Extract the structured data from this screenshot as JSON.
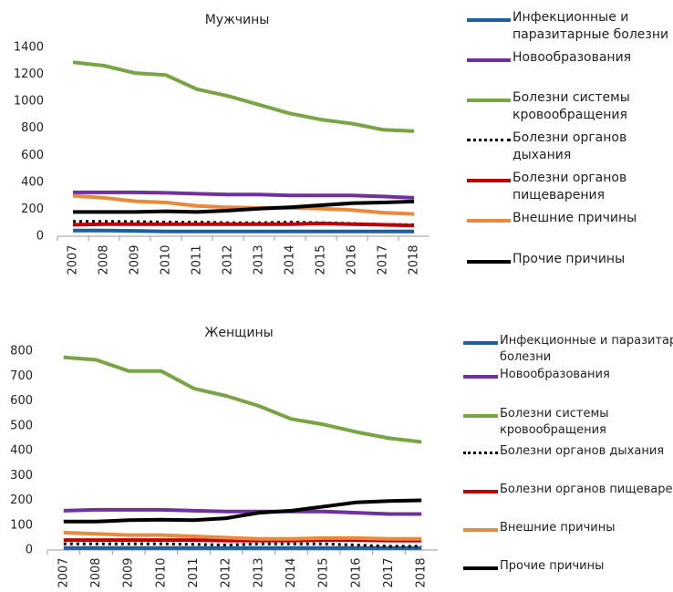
{
  "chart_data": [
    {
      "type": "line",
      "title": "Мужчины",
      "categories": [
        "2007",
        "2008",
        "2009",
        "2010",
        "2011",
        "2012",
        "2013",
        "2014",
        "2015",
        "2016",
        "2017",
        "2018"
      ],
      "ylim": [
        0,
        1400
      ],
      "yticks": [
        0,
        200,
        400,
        600,
        800,
        1000,
        1200,
        1400
      ],
      "series": [
        {
          "name": "Инфекционные и паразитарные болезни",
          "color": "#1f5fa0",
          "values": [
            42,
            42,
            40,
            35,
            35,
            35,
            35,
            35,
            35,
            35,
            35,
            35
          ]
        },
        {
          "name": "Новообразования",
          "color": "#7030a0",
          "values": [
            325,
            325,
            325,
            322,
            315,
            310,
            310,
            302,
            302,
            302,
            295,
            285
          ]
        },
        {
          "name": "Болезни системы кровообращения",
          "color": "#77a544",
          "values": [
            1290,
            1265,
            1210,
            1195,
            1090,
            1040,
            975,
            910,
            865,
            835,
            790,
            780
          ]
        },
        {
          "name": "Болезни органов дыхания",
          "color": "#000000",
          "style": "dotted",
          "values": [
            110,
            110,
            108,
            105,
            105,
            100,
            100,
            105,
            100,
            95,
            88,
            85
          ]
        },
        {
          "name": "Болезни органов пищеварения",
          "color": "#c00000",
          "values": [
            85,
            90,
            90,
            90,
            90,
            90,
            90,
            90,
            95,
            90,
            85,
            80
          ]
        },
        {
          "name": "Внешние причины",
          "color": "#e8893b",
          "values": [
            300,
            285,
            260,
            250,
            225,
            215,
            210,
            210,
            205,
            195,
            175,
            165
          ]
        },
        {
          "name": "Прочие причины",
          "color": "#000000",
          "values": [
            180,
            180,
            180,
            185,
            180,
            190,
            205,
            215,
            230,
            245,
            250,
            258
          ]
        }
      ]
    },
    {
      "type": "line",
      "title": "Женщины",
      "categories": [
        "2007",
        "2008",
        "2009",
        "2010",
        "2011",
        "2012",
        "2013",
        "2014",
        "2015",
        "2016",
        "2017",
        "2018"
      ],
      "ylim": [
        0,
        800
      ],
      "yticks": [
        0,
        100,
        200,
        300,
        400,
        500,
        600,
        700,
        800
      ],
      "series": [
        {
          "name": "Инфекционные и паразитарные болезни",
          "color": "#1f5fa0",
          "values": [
            8,
            8,
            8,
            8,
            8,
            8,
            8,
            8,
            8,
            8,
            8,
            8
          ]
        },
        {
          "name": "Новообразования",
          "color": "#7030a0",
          "values": [
            158,
            162,
            162,
            162,
            158,
            155,
            155,
            155,
            155,
            150,
            145,
            145
          ]
        },
        {
          "name": "Болезни системы кровообращения",
          "color": "#77a544",
          "values": [
            775,
            765,
            720,
            720,
            650,
            620,
            580,
            527,
            505,
            475,
            450,
            435
          ]
        },
        {
          "name": "Болезни органов дыхания",
          "color": "#000000",
          "style": "dotted",
          "values": [
            25,
            25,
            25,
            25,
            23,
            20,
            25,
            25,
            25,
            20,
            15,
            15
          ]
        },
        {
          "name": "Болезни органов пищеварения",
          "color": "#c00000",
          "values": [
            40,
            40,
            40,
            40,
            40,
            38,
            38,
            38,
            40,
            40,
            38,
            38
          ]
        },
        {
          "name": "Внешние причины",
          "color": "#e8893b",
          "values": [
            70,
            65,
            60,
            60,
            55,
            50,
            45,
            45,
            48,
            48,
            45,
            45
          ]
        },
        {
          "name": "Прочие причины",
          "color": "#000000",
          "values": [
            115,
            115,
            120,
            122,
            120,
            128,
            150,
            158,
            175,
            192,
            197,
            200
          ]
        }
      ]
    }
  ]
}
